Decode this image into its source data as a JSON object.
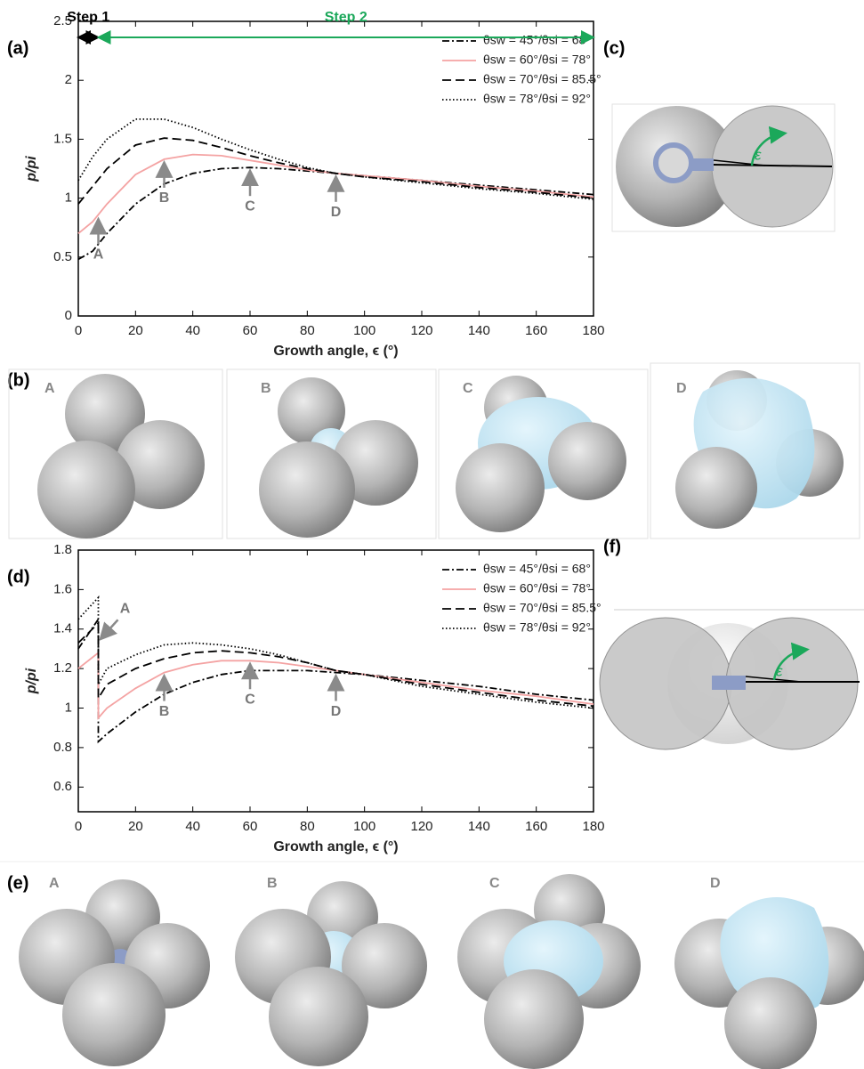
{
  "chart_data": [
    {
      "type": "line",
      "panel": "(a)",
      "xlabel": "Growth angle, ϵ (°)",
      "ylabel": "p/pi",
      "xlim": [
        0,
        180
      ],
      "xticks": [
        0,
        20,
        40,
        60,
        80,
        100,
        120,
        140,
        160,
        180
      ],
      "ylim": [
        0,
        2.5
      ],
      "yticks": [
        0,
        0.5,
        1,
        1.5,
        2,
        2.5
      ],
      "legend": "upper right",
      "x": [
        0,
        5,
        10,
        20,
        30,
        40,
        50,
        60,
        70,
        80,
        90,
        100,
        120,
        140,
        160,
        180
      ],
      "series": [
        {
          "name": "θsw = 45°/θsi = 68°",
          "color": "#000000",
          "dash": "dashdot",
          "values": [
            0.48,
            0.55,
            0.7,
            0.95,
            1.12,
            1.21,
            1.25,
            1.26,
            1.25,
            1.23,
            1.21,
            1.19,
            1.15,
            1.11,
            1.07,
            1.03
          ]
        },
        {
          "name": "θsw = 60°/θsi = 78°",
          "color": "#f4a3a3",
          "dash": "solid",
          "values": [
            0.7,
            0.8,
            0.95,
            1.2,
            1.33,
            1.37,
            1.36,
            1.32,
            1.28,
            1.24,
            1.21,
            1.19,
            1.15,
            1.1,
            1.06,
            1.01
          ]
        },
        {
          "name": "θsw = 70°/θsi = 85.5°",
          "color": "#000000",
          "dash": "dashed",
          "values": [
            0.95,
            1.1,
            1.25,
            1.45,
            1.51,
            1.49,
            1.43,
            1.36,
            1.3,
            1.25,
            1.21,
            1.18,
            1.14,
            1.09,
            1.05,
            1.0
          ]
        },
        {
          "name": "θsw = 78°/θsi = 92°",
          "color": "#000000",
          "dash": "dotted",
          "values": [
            1.15,
            1.35,
            1.5,
            1.67,
            1.67,
            1.6,
            1.5,
            1.41,
            1.33,
            1.26,
            1.21,
            1.18,
            1.13,
            1.08,
            1.04,
            0.99
          ]
        }
      ],
      "annotations": [
        {
          "text": "A",
          "x": 7,
          "y": 0.85,
          "direction": "up"
        },
        {
          "text": "B",
          "x": 30,
          "y": 1.33,
          "direction": "up"
        },
        {
          "text": "C",
          "x": 60,
          "y": 1.26,
          "direction": "up"
        },
        {
          "text": "D",
          "x": 90,
          "y": 1.21,
          "direction": "up"
        }
      ],
      "spans": [
        {
          "label": "Step 1",
          "color": "#000000",
          "x": [
            0,
            7
          ]
        },
        {
          "label": "Step 2",
          "color": "#1ba85a",
          "x": [
            7,
            180
          ]
        }
      ]
    },
    {
      "type": "line",
      "panel": "(d)",
      "xlabel": "Growth angle, ϵ (°)",
      "ylabel": "p/pi",
      "xlim": [
        0,
        180
      ],
      "xticks": [
        0,
        20,
        40,
        60,
        80,
        100,
        120,
        140,
        160,
        180
      ],
      "ylim": [
        0.475,
        1.8
      ],
      "yticks": [
        0.6,
        0.8,
        1,
        1.2,
        1.4,
        1.6,
        1.8
      ],
      "legend": "upper right",
      "x": [
        0,
        7,
        7,
        10,
        20,
        30,
        40,
        50,
        60,
        70,
        80,
        90,
        100,
        120,
        140,
        160,
        180
      ],
      "series": [
        {
          "name": "θsw = 45°/θsi = 68°",
          "color": "#000000",
          "dash": "dashdot",
          "values": [
            1.3,
            1.45,
            0.83,
            0.87,
            0.98,
            1.07,
            1.13,
            1.17,
            1.19,
            1.19,
            1.19,
            1.18,
            1.17,
            1.14,
            1.11,
            1.07,
            1.04
          ]
        },
        {
          "name": "θsw = 60°/θsi = 78°",
          "color": "#f4a3a3",
          "dash": "solid",
          "values": [
            1.2,
            1.28,
            0.95,
            1.0,
            1.1,
            1.18,
            1.22,
            1.24,
            1.24,
            1.23,
            1.21,
            1.19,
            1.17,
            1.13,
            1.09,
            1.06,
            1.02
          ]
        },
        {
          "name": "θsw = 70°/θsi = 85.5°",
          "color": "#000000",
          "dash": "dashed",
          "values": [
            1.33,
            1.43,
            1.05,
            1.12,
            1.2,
            1.25,
            1.28,
            1.29,
            1.28,
            1.26,
            1.23,
            1.19,
            1.17,
            1.12,
            1.08,
            1.04,
            1.01
          ]
        },
        {
          "name": "θsw = 78°/θsi = 92°",
          "color": "#000000",
          "dash": "dotted",
          "values": [
            1.45,
            1.56,
            1.12,
            1.2,
            1.27,
            1.32,
            1.33,
            1.32,
            1.3,
            1.27,
            1.23,
            1.19,
            1.17,
            1.11,
            1.07,
            1.03,
            1.0
          ]
        }
      ],
      "annotations": [
        {
          "text": "A",
          "x": 7,
          "y": 1.33,
          "direction": "down-left"
        },
        {
          "text": "B",
          "x": 30,
          "y": 1.18,
          "direction": "up"
        },
        {
          "text": "C",
          "x": 60,
          "y": 1.24,
          "direction": "up"
        },
        {
          "text": "D",
          "x": 90,
          "y": 1.18,
          "direction": "up"
        }
      ]
    }
  ],
  "illustrations": [
    {
      "panel": "(b)",
      "labels": [
        "A",
        "B",
        "C",
        "D"
      ]
    },
    {
      "panel": "(c)",
      "symbol": "ε"
    },
    {
      "panel": "(e)",
      "labels": [
        "A",
        "B",
        "C",
        "D"
      ]
    },
    {
      "panel": "(f)",
      "symbol": "ε"
    }
  ]
}
